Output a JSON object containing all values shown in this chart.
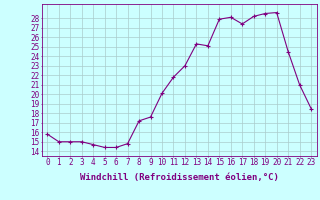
{
  "x": [
    0,
    1,
    2,
    3,
    4,
    5,
    6,
    7,
    8,
    9,
    10,
    11,
    12,
    13,
    14,
    15,
    16,
    17,
    18,
    19,
    20,
    21,
    22,
    23
  ],
  "y": [
    15.8,
    15.0,
    15.0,
    15.0,
    14.7,
    14.4,
    14.4,
    14.8,
    17.2,
    17.6,
    20.1,
    21.8,
    23.0,
    25.3,
    25.1,
    27.9,
    28.1,
    27.4,
    28.2,
    28.5,
    28.6,
    24.5,
    21.0,
    18.5
  ],
  "line_color": "#800080",
  "marker": "+",
  "marker_size": 3,
  "xlabel": "Windchill (Refroidissement éolien,°C)",
  "ylabel_ticks": [
    14,
    15,
    16,
    17,
    18,
    19,
    20,
    21,
    22,
    23,
    24,
    25,
    26,
    27,
    28
  ],
  "xlim": [
    -0.5,
    23.5
  ],
  "ylim": [
    13.5,
    29.5
  ],
  "bg_color": "#ccffff",
  "grid_color": "#aacccc",
  "tick_color": "#800080",
  "label_color": "#800080",
  "tick_fontsize": 5.5,
  "xlabel_fontsize": 6.5
}
